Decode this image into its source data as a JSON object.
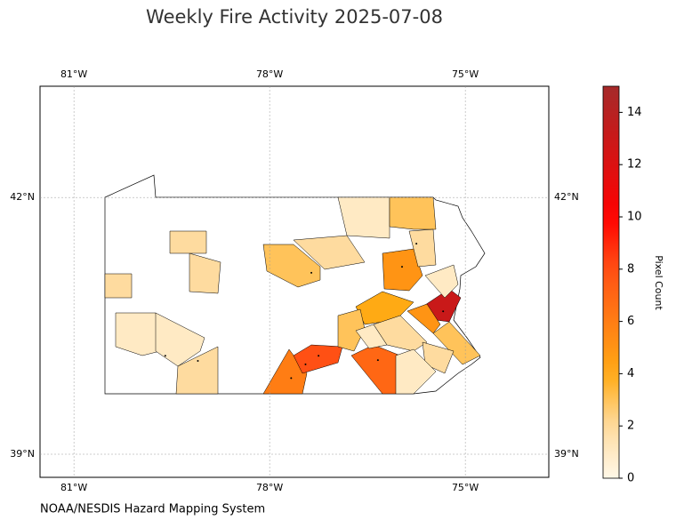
{
  "chart_data": {
    "type": "choropleth",
    "title": "Weekly Fire Activity 2025-07-08",
    "source": "NOAA/NESDIS Hazard Mapping System",
    "colorbar_label": "Pixel Count",
    "xlim": [
      -81.52,
      -73.72
    ],
    "ylim": [
      38.73,
      43.3
    ],
    "xticks": [
      {
        "value": -81,
        "label": "81°W"
      },
      {
        "value": -78,
        "label": "78°W"
      },
      {
        "value": -75,
        "label": "75°W"
      }
    ],
    "yticks": [
      {
        "value": 39,
        "label": "39°N"
      },
      {
        "value": 42,
        "label": "42°N"
      }
    ],
    "clim": [
      0,
      15
    ],
    "cticks": [
      0,
      2,
      4,
      6,
      8,
      10,
      12,
      14
    ],
    "grid": true,
    "region_values": [
      2,
      2,
      2,
      1,
      1,
      2,
      6,
      8,
      7,
      3,
      2,
      1,
      3,
      5,
      4,
      3,
      13,
      5,
      3,
      1,
      2,
      1,
      2,
      2,
      1
    ],
    "fire_points": {
      "lon": [
        -77.25,
        -77.45,
        -77.67,
        -75.97,
        -75.34,
        -76.34,
        -75.75,
        -79.6,
        -79.1,
        -77.36
      ],
      "lat": [
        40.15,
        40.05,
        39.89,
        41.19,
        40.67,
        40.1,
        41.46,
        40.15,
        40.09,
        41.12
      ]
    }
  }
}
